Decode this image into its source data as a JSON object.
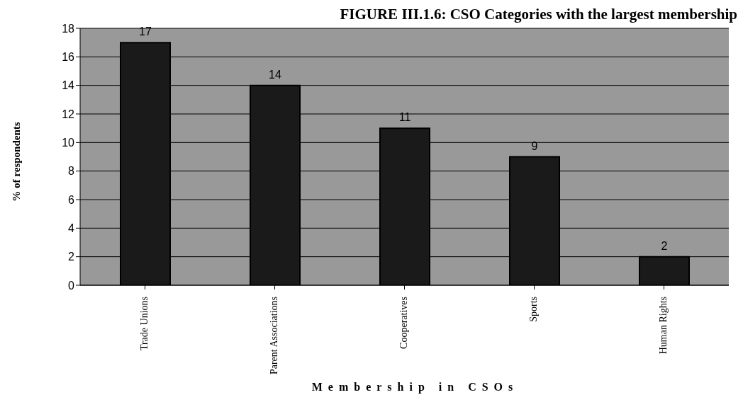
{
  "chart_data": {
    "type": "bar",
    "title": "FIGURE III.1.6: CSO Categories with the largest membership",
    "xlabel": "Membership in CSOs",
    "ylabel": "% of respondents",
    "categories": [
      "Trade Unions",
      "Parent Associations",
      "Cooperatives",
      "Sports",
      "Human Rights"
    ],
    "values": [
      17,
      14,
      11,
      9,
      2
    ],
    "color": "#1a1a1a",
    "ylim": [
      0,
      18
    ],
    "yticks": [
      0,
      2,
      4,
      6,
      8,
      10,
      12,
      14,
      16,
      18
    ],
    "grid": "y",
    "data_labels": true
  }
}
